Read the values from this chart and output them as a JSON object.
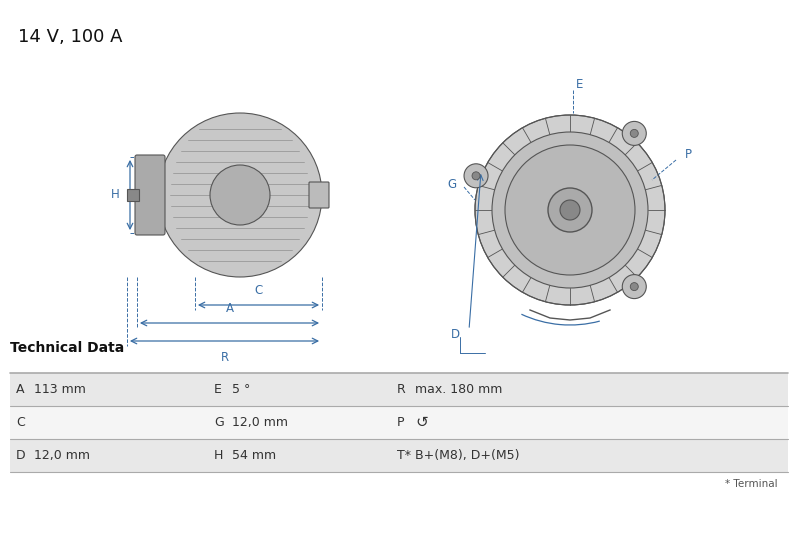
{
  "title": "14 V, 100 A",
  "title_fontsize": 13,
  "bg_color": "#ffffff",
  "table_header": "Technical Data",
  "table_bg_odd": "#e8e8e8",
  "table_bg_even": "#f5f5f5",
  "table_rows": [
    [
      "A",
      "113 mm",
      "E",
      "5 °",
      "R",
      "max. 180 mm"
    ],
    [
      "C",
      "",
      "G",
      "12,0 mm",
      "P",
      "↺"
    ],
    [
      "D",
      "12,0 mm",
      "H",
      "54 mm",
      "T*",
      "B+(M8), D+(M5)"
    ]
  ],
  "table_footnote": "* Terminal",
  "dim_color": "#3a6ea5",
  "line_color": "#555555"
}
